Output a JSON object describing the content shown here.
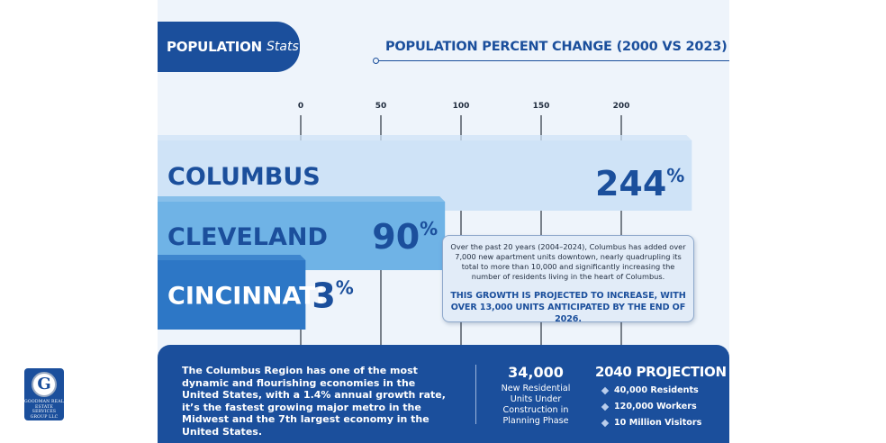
{
  "header": {
    "tab_bold": "POPULATION",
    "tab_italic": "Stats",
    "chart_title": "POPULATION PERCENT CHANGE (2000 VS 2023)"
  },
  "chart_data": {
    "type": "bar",
    "orientation": "horizontal",
    "title": "POPULATION PERCENT CHANGE (2000 VS 2023)",
    "categories": [
      "COLUMBUS",
      "CLEVELAND",
      "CINCINNATI"
    ],
    "values": [
      244,
      90,
      3
    ],
    "value_labels": [
      "244",
      "90",
      "3"
    ],
    "value_suffix": "%",
    "x_ticks": [
      0,
      50,
      100,
      150,
      200
    ],
    "x_tick_labels": [
      "0",
      "50",
      "100",
      "150",
      "200"
    ],
    "grid": true,
    "colors": {
      "COLUMBUS": "#cfe3f7",
      "CLEVELAND": "#6fb3e6",
      "CINCINNATI": "#2d77c6"
    }
  },
  "callout": {
    "body": "Over the past 20 years (2004–2024),  Columbus has added over 7,000 new apartment units downtown, nearly quadrupling its total to more than 10,000 and significantly increasing the number of residents living in the heart of Columbus.",
    "emphasis": "THIS GROWTH IS PROJECTED TO INCREASE, WITH OVER 13,000 UNITS ANTICIPATED BY THE END OF 2026."
  },
  "footer": {
    "description": "The Columbus Region has one of the most dynamic and flourishing economies in the United States, with a 1.4% annual growth rate, it’s the fastest growing major metro in the Midwest and the 7th largest economy in the United States.",
    "units_value": "34,000",
    "units_label": "New Residential Units Under Construction in Planning Phase",
    "projection_title": "2040 PROJECTION",
    "projection_items": [
      "40,000 Residents",
      "120,000 Workers",
      "10 Million Visitors"
    ]
  },
  "logo": {
    "letter": "G",
    "name": "GOODMAN REAL ESTATE SERVICES GROUP LLC"
  },
  "colors": {
    "brand_blue": "#1b4f9c",
    "panel_bg": "#eef4fb"
  }
}
